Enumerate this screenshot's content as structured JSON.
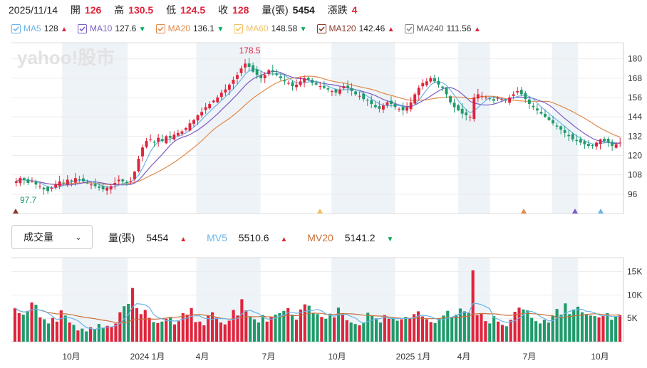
{
  "info": {
    "date": "2025/11/14",
    "open_label": "開",
    "open": "126",
    "high_label": "高",
    "high": "130.5",
    "low_label": "低",
    "low": "124.5",
    "close_label": "收",
    "close": "128",
    "vol_label": "量(張)",
    "vol": "5454",
    "chg_label": "漲跌",
    "chg": "4"
  },
  "legend": [
    {
      "name": "MA5",
      "value": "128",
      "dir": "up",
      "color": "#6ab4e8"
    },
    {
      "name": "MA10",
      "value": "127.6",
      "dir": "down",
      "color": "#7b5cc4"
    },
    {
      "name": "MA20",
      "value": "136.1",
      "dir": "down",
      "color": "#e08a4a"
    },
    {
      "name": "MA60",
      "value": "148.58",
      "dir": "down",
      "color": "#f0c060"
    },
    {
      "name": "MA120",
      "value": "142.46",
      "dir": "up",
      "color": "#8b3a2a"
    },
    {
      "name": "MA240",
      "value": "111.56",
      "dir": "up",
      "color": "#888888"
    }
  ],
  "watermark": "yahoo!股市",
  "dropdown_label": "成交量",
  "volinfo": {
    "vol_label": "量(張)",
    "vol": "5454",
    "mv5_label": "MV5",
    "mv5": "5510.6",
    "mv20_label": "MV20",
    "mv20": "5141.2"
  },
  "chart_data": [
    {
      "type": "candlestick",
      "title": "",
      "y_ticks": [
        180,
        168,
        156,
        144,
        132,
        120,
        108,
        96
      ],
      "ylim": [
        84,
        190
      ],
      "annotations": {
        "max": "178.5",
        "min": "97.7"
      },
      "period_start": "2023-09",
      "period_end": "2025-11-14",
      "close_series": [
        104,
        106,
        105,
        103,
        104,
        102,
        101,
        99,
        98,
        100,
        102,
        104,
        103,
        105,
        104,
        106,
        105,
        104,
        103,
        102,
        101,
        100,
        99,
        100,
        101,
        103,
        105,
        104,
        103,
        104,
        110,
        118,
        125,
        129,
        130,
        128,
        131,
        129,
        132,
        131,
        133,
        134,
        135,
        137,
        140,
        142,
        145,
        147,
        150,
        152,
        154,
        156,
        159,
        161,
        164,
        167,
        170,
        174,
        177,
        175,
        172,
        170,
        168,
        170,
        173,
        172,
        170,
        168,
        166,
        165,
        163,
        164,
        166,
        168,
        167,
        165,
        164,
        163,
        162,
        161,
        160,
        159,
        161,
        163,
        162,
        160,
        158,
        157,
        155,
        154,
        152,
        150,
        149,
        151,
        153,
        152,
        150,
        149,
        148,
        150,
        153,
        158,
        162,
        165,
        166,
        168,
        166,
        164,
        162,
        158,
        153,
        150,
        148,
        146,
        145,
        144,
        156,
        158,
        157,
        156,
        155,
        154,
        156,
        155,
        154,
        156,
        158,
        160,
        158,
        155,
        152,
        150,
        148,
        146,
        144,
        142,
        140,
        138,
        136,
        134,
        132,
        130,
        129,
        128,
        127,
        126,
        126,
        128,
        130,
        129,
        128,
        126,
        127,
        128
      ],
      "ma5_end": 128,
      "ma10_end": 127.6,
      "ma20_end": 136.1
    },
    {
      "type": "bar",
      "title": "成交量",
      "y_ticks": [
        "15K",
        "10K",
        "5K"
      ],
      "ylim": [
        0,
        18000
      ],
      "x_ticks": [
        "10月",
        "2024 1月",
        "4月",
        "7月",
        "10月",
        "2025 1月",
        "4月",
        "7月",
        "10月"
      ],
      "last_volume": 5454,
      "mv5": 5510.6,
      "mv20": 5141.2,
      "volumes": [
        7200,
        6100,
        5800,
        6600,
        8400,
        7900,
        5200,
        4800,
        3900,
        5100,
        4300,
        6700,
        5600,
        4100,
        3600,
        2400,
        2800,
        2200,
        3100,
        2600,
        3800,
        2900,
        3400,
        3100,
        3900,
        6300,
        7600,
        8100,
        11500,
        7200,
        5900,
        6800,
        5100,
        4200,
        4000,
        4300,
        4900,
        5200,
        3700,
        4400,
        6100,
        5800,
        7200,
        4200,
        4300,
        3500,
        5600,
        6300,
        5100,
        4100,
        3700,
        4500,
        6800,
        5600,
        9100,
        6700,
        5400,
        4800,
        4100,
        5700,
        4300,
        5300,
        5800,
        6100,
        6600,
        7200,
        5800,
        4700,
        6900,
        8000,
        7700,
        6100,
        5900,
        5300,
        4900,
        6000,
        5200,
        7300,
        5800,
        4600,
        4100,
        3800,
        3500,
        4000,
        6200,
        5500,
        5000,
        4100,
        5700,
        4900,
        5200,
        4500,
        4800,
        5300,
        5100,
        5900,
        6500,
        5400,
        4800,
        4200,
        4000,
        4900,
        5600,
        6600,
        5200,
        5800,
        7100,
        6500,
        6200,
        15300,
        5700,
        6000,
        4400,
        3900,
        5500,
        4300,
        3600,
        3300,
        4700,
        6400,
        7300,
        6900,
        6700,
        5100,
        4400,
        3900,
        4700,
        4100,
        5500,
        7000,
        5800,
        8200,
        5900,
        6900,
        7500,
        6300,
        5900,
        5600,
        5500,
        5200,
        5500,
        6100,
        4700,
        5400,
        5700
      ]
    }
  ]
}
